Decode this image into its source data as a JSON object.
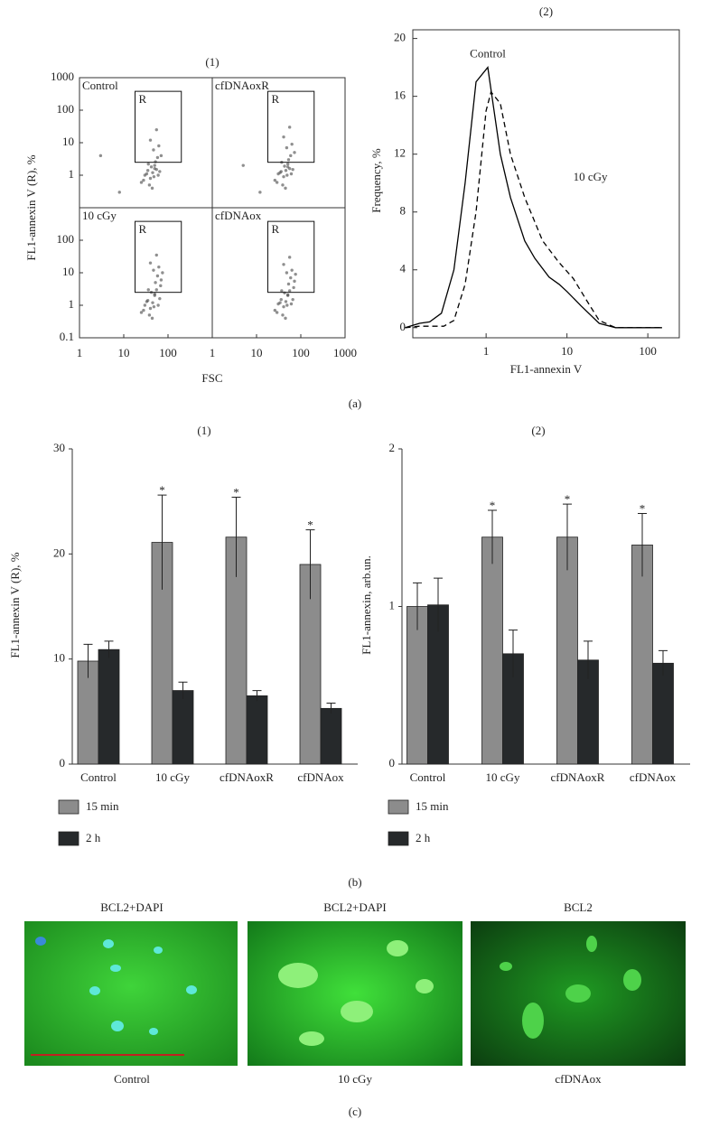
{
  "chart_data": [
    {
      "type": "flow",
      "title": "(1)",
      "xlabel": "FSC",
      "ylabel": "FL1-annexin V (R), %",
      "xscale": "log",
      "yscale": "log",
      "xlim": [
        1,
        1000
      ],
      "ylim": [
        0.1,
        1000
      ],
      "gate_label": "R",
      "gate": {
        "x": [
          18,
          200
        ],
        "y": [
          2.5,
          380
        ]
      },
      "color": "#444444",
      "panels": [
        {
          "name": "Control",
          "yticks": [
            1,
            10,
            100,
            1000
          ],
          "x": [
            25,
            30,
            35,
            40,
            45,
            50,
            55,
            60,
            38,
            42,
            48,
            33,
            28,
            52,
            58,
            65,
            44,
            36,
            47,
            70,
            40,
            55,
            50,
            62,
            3,
            8
          ],
          "y": [
            0.6,
            1,
            1.4,
            0.8,
            1.2,
            2,
            1.5,
            1,
            0.5,
            1.8,
            0.9,
            1.1,
            0.7,
            2.6,
            3.5,
            1.3,
            0.4,
            2.2,
            6,
            4,
            12,
            25,
            1.6,
            8,
            4,
            0.3
          ]
        },
        {
          "name": "cfDNAoxR",
          "x": [
            26,
            31,
            36,
            41,
            46,
            51,
            56,
            61,
            39,
            43,
            49,
            34,
            29,
            53,
            59,
            66,
            45,
            37,
            48,
            72,
            41,
            56,
            51,
            63,
            5,
            12
          ],
          "y": [
            0.7,
            1.1,
            1.3,
            0.9,
            1.4,
            2.2,
            1.6,
            1.1,
            0.5,
            1.9,
            1,
            1.2,
            0.6,
            3,
            4,
            1.5,
            0.4,
            2.5,
            7,
            5,
            15,
            30,
            1.8,
            9,
            2,
            0.3
          ]
        },
        {
          "name": "10 cGy",
          "yticks": [
            0.1,
            1,
            10,
            100
          ],
          "xticks": [
            1,
            10,
            100
          ],
          "x": [
            25,
            30,
            35,
            40,
            45,
            50,
            55,
            60,
            38,
            42,
            48,
            33,
            28,
            52,
            58,
            65,
            44,
            36,
            47,
            70,
            40,
            55,
            50,
            62,
            68,
            75
          ],
          "y": [
            0.6,
            1,
            1.4,
            0.8,
            1.2,
            2,
            3,
            1,
            0.5,
            2.5,
            0.9,
            1.3,
            0.7,
            5,
            8,
            1.6,
            0.4,
            3,
            12,
            6,
            20,
            35,
            2.2,
            15,
            4,
            10
          ]
        },
        {
          "name": "cfDNAox",
          "xticks": [
            1,
            10,
            100,
            1000
          ],
          "x": [
            26,
            31,
            36,
            41,
            46,
            51,
            56,
            61,
            39,
            43,
            49,
            34,
            29,
            53,
            59,
            66,
            45,
            37,
            48,
            72,
            41,
            56,
            51,
            63,
            69,
            76
          ],
          "y": [
            0.7,
            1.1,
            1.5,
            0.9,
            1.3,
            2.1,
            2.8,
            1.1,
            0.5,
            2.4,
            1,
            1.2,
            0.6,
            4.5,
            7,
            1.5,
            0.4,
            2.8,
            10,
            5.5,
            18,
            30,
            2,
            12,
            3.5,
            9
          ]
        }
      ]
    },
    {
      "type": "line",
      "title": "(2)",
      "xlabel": "FL1-annexin V",
      "ylabel": "Frequency, %",
      "xscale": "log",
      "xlim": [
        0.124,
        245
      ],
      "ylim": [
        -0.7,
        20.6
      ],
      "xticks": [
        1,
        10,
        100
      ],
      "yticks": [
        0,
        4,
        8,
        12,
        16,
        20
      ],
      "series": [
        {
          "name": "Control",
          "color": "#000000",
          "dash": false,
          "x": [
            0.1,
            0.15,
            0.2,
            0.28,
            0.4,
            0.55,
            0.75,
            1.05,
            1.5,
            2,
            3,
            4,
            6,
            8,
            10,
            15,
            25,
            40,
            150
          ],
          "values": [
            0,
            0.3,
            0.4,
            1,
            4,
            10,
            17,
            18,
            12,
            9,
            6,
            4.8,
            3.5,
            3,
            2.5,
            1.5,
            0.3,
            0,
            0
          ]
        },
        {
          "name": "10 cGy",
          "color": "#000000",
          "dash": true,
          "x": [
            0.1,
            0.15,
            0.3,
            0.4,
            0.55,
            0.75,
            1,
            1.15,
            1.5,
            2,
            3,
            5,
            8,
            12,
            17,
            25,
            40,
            150
          ],
          "values": [
            0,
            0.1,
            0.1,
            0.5,
            3,
            8,
            15,
            16.3,
            15.5,
            12,
            9,
            6,
            4.5,
            3.4,
            2,
            0.5,
            0,
            0
          ]
        }
      ]
    },
    {
      "type": "bar",
      "title": "(1)",
      "ylabel": "FL1-annexin V (R), %",
      "ylim": [
        0,
        30
      ],
      "yticks": [
        0,
        10,
        20,
        30
      ],
      "categories": [
        "Control",
        "10 cGy",
        "cfDNAoxR",
        "cfDNAox"
      ],
      "series": [
        {
          "name": "15 min",
          "color": "#8c8c8c",
          "values": [
            9.8,
            21.1,
            21.6,
            19.0
          ],
          "errors": [
            1.6,
            4.5,
            3.8,
            3.3
          ],
          "annotations": [
            null,
            "*",
            "*",
            "*"
          ]
        },
        {
          "name": "2 h",
          "color": "#26292b",
          "values": [
            10.9,
            7.0,
            6.5,
            5.3
          ],
          "errors": [
            0.8,
            0.8,
            0.5,
            0.5
          ]
        }
      ]
    },
    {
      "type": "bar",
      "title": "(2)",
      "ylabel": "FL1-annexin, arb.un.",
      "ylim": [
        0,
        2
      ],
      "yticks": [
        0,
        1,
        2
      ],
      "categories": [
        "Control",
        "10 cGy",
        "cfDNAoxR",
        "cfDNAox"
      ],
      "series": [
        {
          "name": "15 min",
          "color": "#8c8c8c",
          "values": [
            1.0,
            1.44,
            1.44,
            1.39
          ],
          "errors": [
            0.15,
            0.17,
            0.21,
            0.2
          ],
          "annotations": [
            null,
            "*",
            "*",
            "*"
          ]
        },
        {
          "name": "2 h",
          "color": "#26292b",
          "values": [
            1.01,
            0.7,
            0.66,
            0.64
          ],
          "errors": [
            0.17,
            0.15,
            0.12,
            0.08
          ]
        }
      ]
    }
  ],
  "panel_labels": [
    "(a)",
    "(b)",
    "(c)"
  ],
  "images": [
    {
      "title": "BCL2+DAPI",
      "caption": "Control"
    },
    {
      "title": "BCL2+DAPI",
      "caption": "10 cGy"
    },
    {
      "title": "BCL2",
      "caption": "cfDNAox"
    }
  ]
}
